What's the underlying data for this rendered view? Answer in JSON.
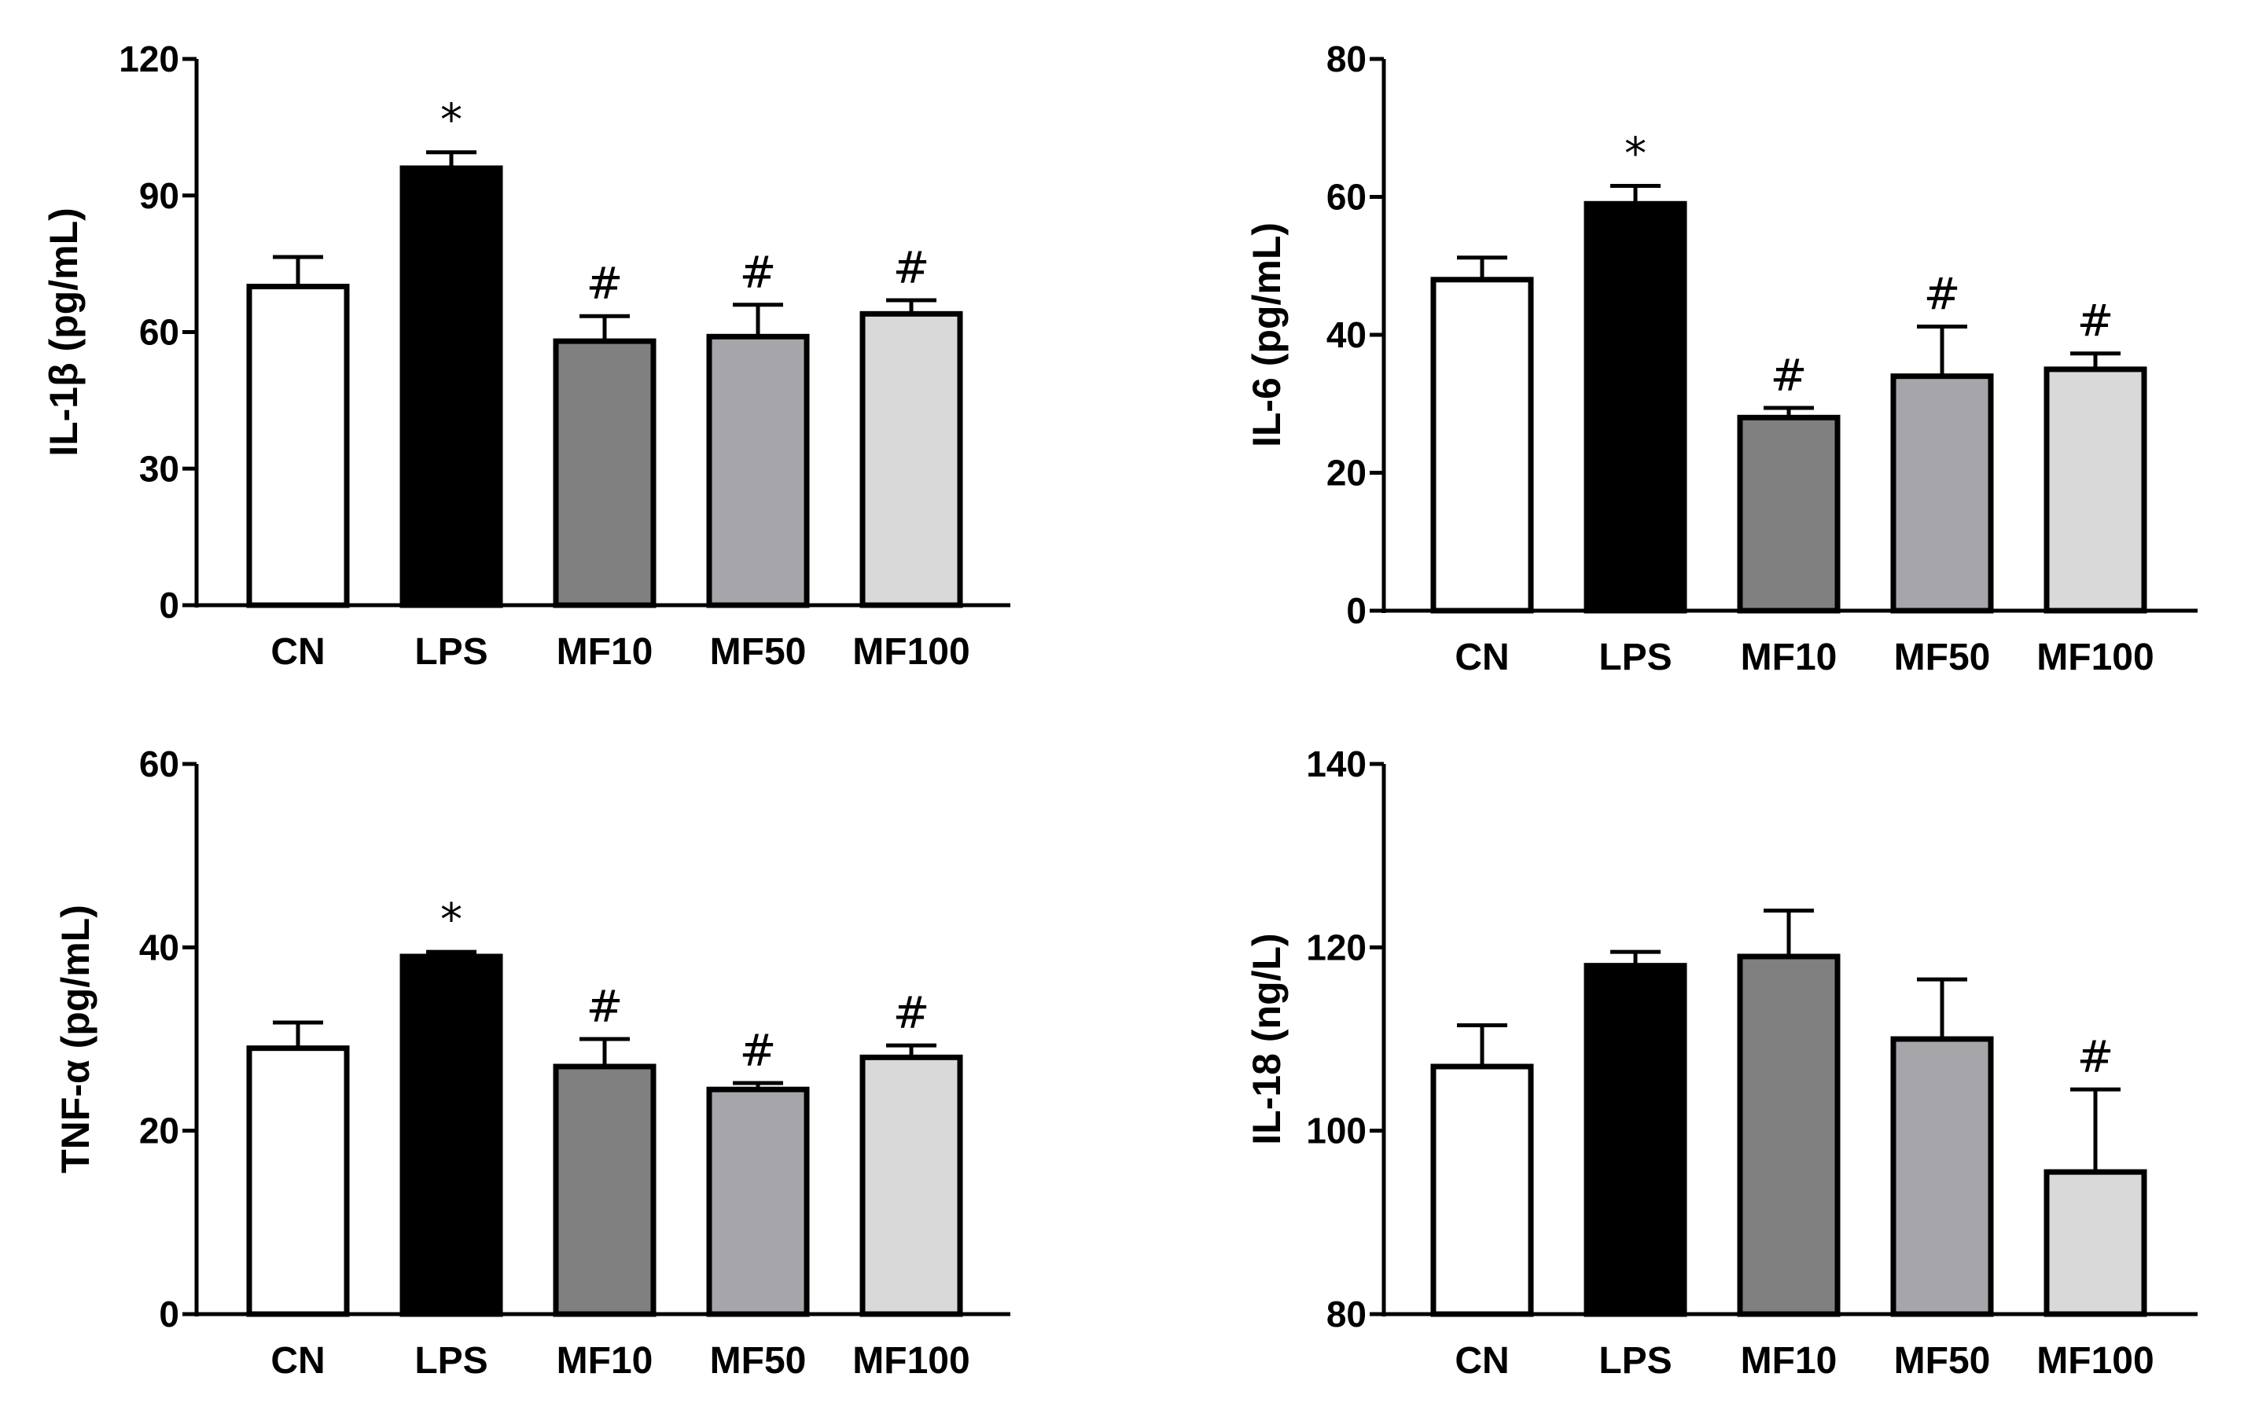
{
  "colors": {
    "CN": "#ffffff",
    "LPS": "#000000",
    "MF10": "#808080",
    "MF50": "#a6a6aa",
    "MF100": "#d9d9d9",
    "stroke": "#000000"
  },
  "chart_data": [
    {
      "type": "bar",
      "ylabel": "IL-1β (pg/mL)",
      "categories": [
        "CN",
        "LPS",
        "MF10",
        "MF50",
        "MF100"
      ],
      "values": [
        70,
        96,
        58,
        59,
        64
      ],
      "errors": [
        6.5,
        3.5,
        5.5,
        7,
        3
      ],
      "annotations": [
        "",
        "*",
        "#",
        "#",
        "#"
      ],
      "ylim": [
        0,
        120
      ],
      "yticks": [
        0,
        30,
        60,
        90,
        120
      ]
    },
    {
      "type": "bar",
      "ylabel": "IL-6 (pg/mL)",
      "categories": [
        "CN",
        "LPS",
        "MF10",
        "MF50",
        "MF100"
      ],
      "values": [
        48,
        59,
        28,
        34,
        35
      ],
      "errors": [
        3.2,
        2.6,
        1.4,
        7.2,
        2.3
      ],
      "annotations": [
        "",
        "*",
        "#",
        "#",
        "#"
      ],
      "ylim": [
        0,
        80
      ],
      "yticks": [
        0,
        20,
        40,
        60,
        80
      ]
    },
    {
      "type": "bar",
      "ylabel": "TNF-α (pg/mL)",
      "categories": [
        "CN",
        "LPS",
        "MF10",
        "MF50",
        "MF100"
      ],
      "values": [
        29,
        39,
        27,
        24.5,
        28
      ],
      "errors": [
        2.8,
        0.5,
        3,
        0.7,
        1.3
      ],
      "annotations": [
        "",
        "*",
        "#",
        "#",
        "#"
      ],
      "ylim": [
        0,
        60
      ],
      "yticks": [
        0,
        20,
        40,
        60
      ]
    },
    {
      "type": "bar",
      "ylabel": "IL-18 (ng/L)",
      "categories": [
        "CN",
        "LPS",
        "MF10",
        "MF50",
        "MF100"
      ],
      "values": [
        107,
        118,
        119,
        110,
        95.5
      ],
      "errors": [
        4.5,
        1.5,
        5,
        6.5,
        9
      ],
      "annotations": [
        "",
        "",
        "",
        "",
        "#"
      ],
      "ylim": [
        80,
        140
      ],
      "yticks": [
        80,
        100,
        120,
        140
      ]
    }
  ]
}
